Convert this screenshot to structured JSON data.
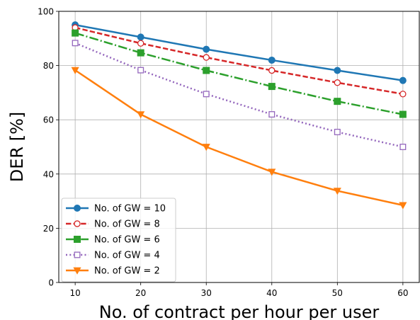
{
  "chart_data": {
    "type": "line",
    "xlabel": "No. of contract per hour per user",
    "ylabel": "DER [%]",
    "x": [
      10,
      20,
      30,
      40,
      50,
      60
    ],
    "xlim": [
      7.5,
      62.5
    ],
    "ylim": [
      0,
      100
    ],
    "xticks": [
      10,
      20,
      30,
      40,
      50,
      60
    ],
    "yticks": [
      0,
      20,
      40,
      60,
      80,
      100
    ],
    "grid": true,
    "legend_position": "lower-left",
    "series": [
      {
        "name": "No. of GW = 10",
        "values": [
          95.0,
          90.5,
          86.0,
          82.0,
          78.2,
          74.5
        ],
        "color": "#1f77b4",
        "linestyle": "solid",
        "marker": "circle-filled"
      },
      {
        "name": "No. of GW = 8",
        "values": [
          94.0,
          88.2,
          83.0,
          78.2,
          73.7,
          69.5
        ],
        "color": "#d62728",
        "linestyle": "dashed",
        "marker": "circle-open"
      },
      {
        "name": "No. of GW = 6",
        "values": [
          92.0,
          84.7,
          78.2,
          72.3,
          66.8,
          62.0
        ],
        "color": "#2ca02c",
        "linestyle": "dashdot",
        "marker": "square-filled"
      },
      {
        "name": "No. of GW = 4",
        "values": [
          88.3,
          78.3,
          69.5,
          62.0,
          55.5,
          50.0
        ],
        "color": "#9467bd",
        "linestyle": "dotted",
        "marker": "square-open"
      },
      {
        "name": "No. of GW = 2",
        "values": [
          78.3,
          62.0,
          50.0,
          40.8,
          33.8,
          28.5
        ],
        "color": "#ff7f0e",
        "linestyle": "solid",
        "marker": "triangle-down"
      }
    ]
  }
}
